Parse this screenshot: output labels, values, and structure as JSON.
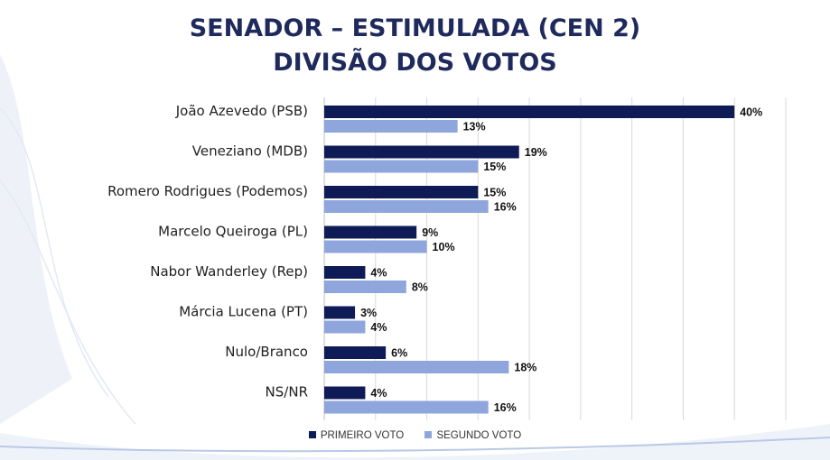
{
  "colors": {
    "primeiro": "#0e1b57",
    "segundo": "#8fa6dd",
    "grid": "#d9d9d9",
    "title": "#1f2a5c"
  },
  "chart_data": {
    "type": "bar",
    "orientation": "horizontal",
    "title": "SENADOR – ESTIMULADA (CEN 2)",
    "subtitle": "DIVISÃO DOS VOTOS",
    "categories": [
      "João Azevedo (PSB)",
      "Veneziano (MDB)",
      "Romero Rodrigues (Podemos)",
      "Marcelo Queiroga (PL)",
      "Nabor Wanderley (Rep)",
      "Márcia Lucena (PT)",
      "Nulo/Branco",
      "NS/NR"
    ],
    "series": [
      {
        "name": "PRIMEIRO VOTO",
        "values": [
          40,
          19,
          15,
          9,
          4,
          3,
          6,
          4
        ],
        "labels": [
          "40%",
          "19%",
          "15%",
          "9%",
          "4%",
          "3%",
          "6%",
          "4%"
        ]
      },
      {
        "name": "SEGUNDO VOTO",
        "values": [
          13,
          15,
          16,
          10,
          8,
          4,
          18,
          16
        ],
        "labels": [
          "13%",
          "15%",
          "16%",
          "10%",
          "8%",
          "4%",
          "18%",
          "16%"
        ]
      }
    ],
    "xlim": [
      0,
      45
    ],
    "grid": true,
    "legend_position": "bottom"
  }
}
